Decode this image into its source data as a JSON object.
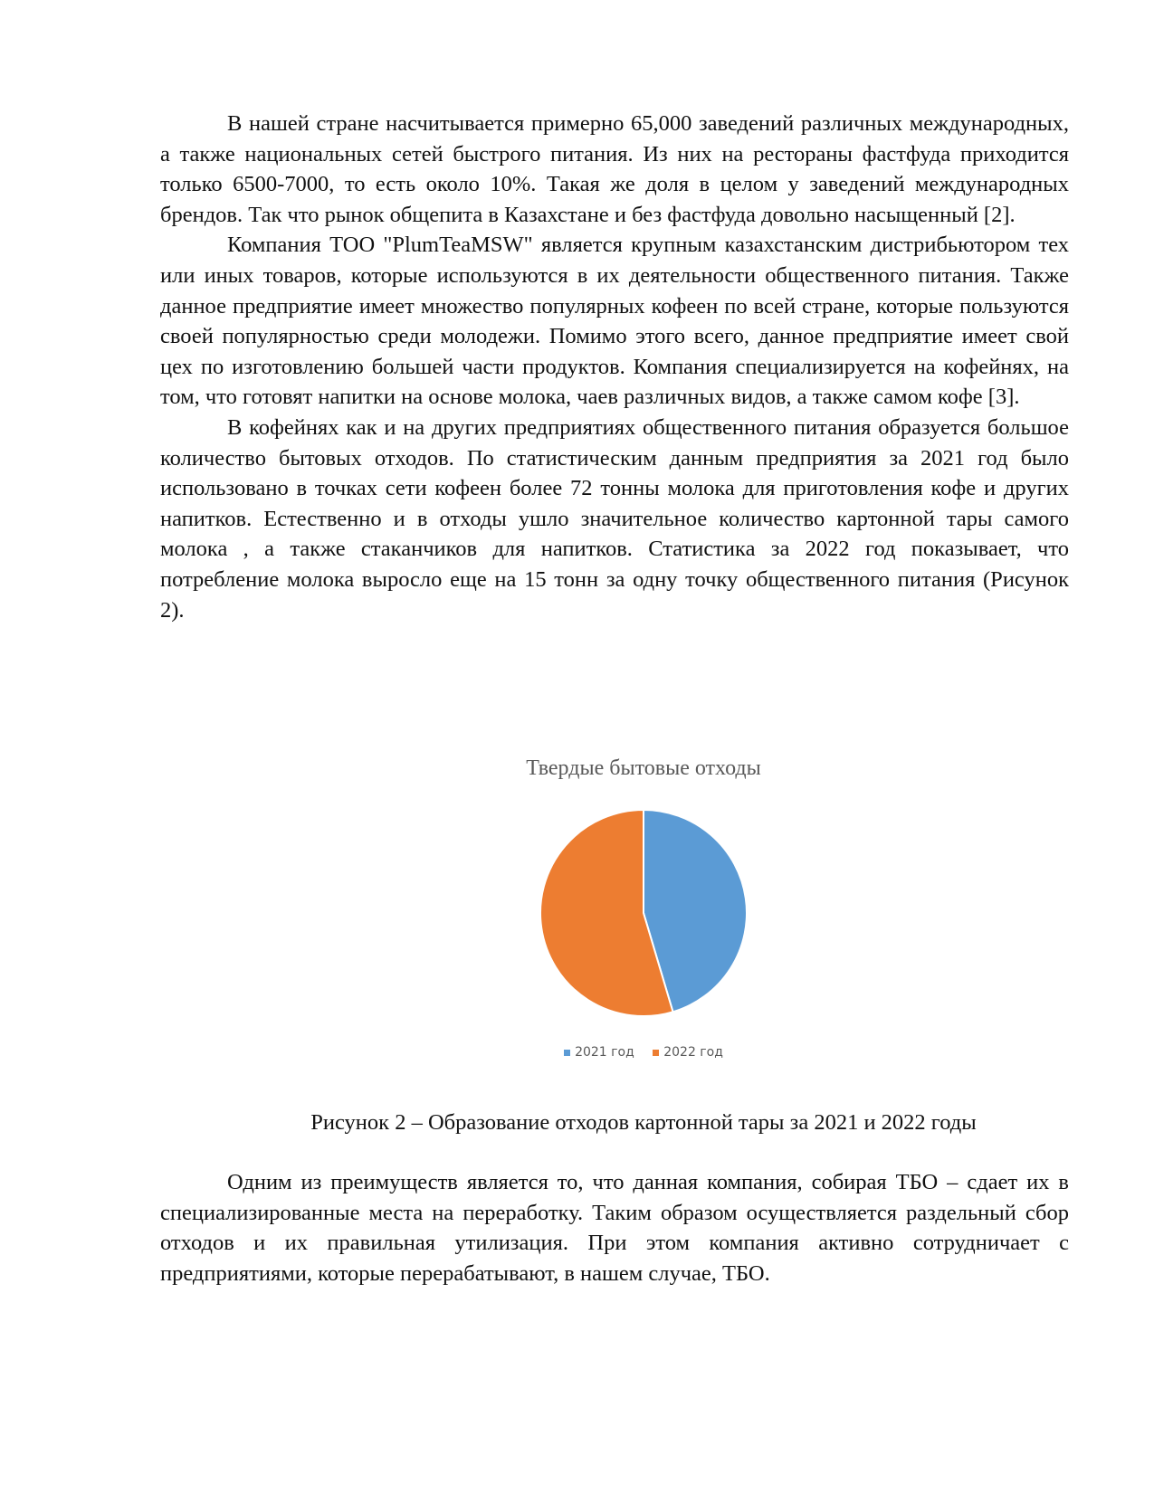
{
  "paragraphs_top": [
    "В нашей стране насчитывается примерно 65,000 заведений различных международных, а также национальных сетей быстрого питания. Из них на рестораны фастфуда приходится только 6500-7000, то есть около 10%. Такая же доля в целом у заведений международных брендов. Так что рынок общепита в Казахстане и без фастфуда довольно насыщенный [2].",
    "Компания ТОО \"PlumTeaMSW\"  является крупным казахстанским дистрибьютором тех или иных товаров, которые используются в их деятельности общественного питания. Также данное предприятие имеет множество популярных кофеен по всей стране, которые пользуются своей популярностью среди молодежи. Помимо этого всего, данное предприятие имеет свой цех по изготовлению большей части продуктов. Компания специализируется на кофейнях, на том, что готовят напитки на основе молока, чаев различных видов, а также самом кофе [3].",
    "В кофейнях как и на других предприятиях общественного питания образуется большое количество бытовых отходов. По статистическим данным предприятия за 2021 год было использовано в точках сети кофеен более 72 тонны молока для приготовления кофе и других напитков. Естественно и в отходы ушло значительное количество картонной тары самого молока , а также стаканчиков для напитков. Статистика за 2022 год показывает, что потребление молока выросло еще на 15 тонн за одну точку общественного питания (Рисунок 2)."
  ],
  "chart_data": {
    "type": "pie",
    "title": "Твердые бытовые отходы",
    "categories": [
      "2021 год",
      "2022 год"
    ],
    "values": [
      45.4,
      54.6
    ],
    "colors": [
      "#5b9bd5",
      "#ed7d31"
    ],
    "legend_position": "bottom"
  },
  "caption": "Рисунок 2 – Образование  отходов картонной тары за 2021 и 2022 годы",
  "paragraphs_bottom": [
    "Одним из преимуществ является то, что данная компания, собирая ТБО – сдает их в специализированные места на переработку.  Таким образом осуществляется раздельный сбор отходов и их правильная утилизация. При этом компания активно сотрудничает  с предприятиями, которые перерабатывают, в нашем случае, ТБО."
  ]
}
